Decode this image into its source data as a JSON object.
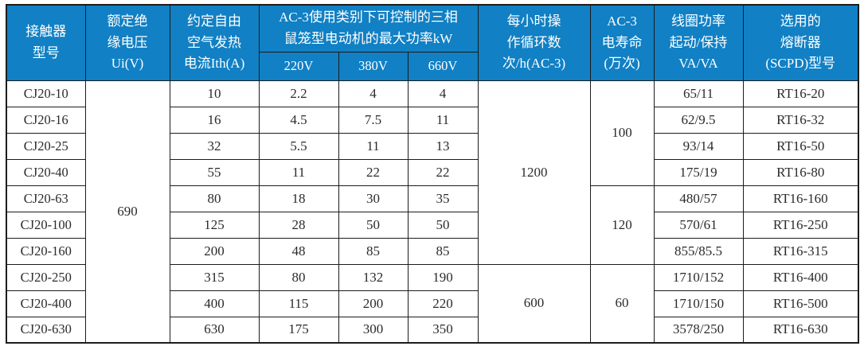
{
  "colors": {
    "header_bg": "#1180c4",
    "header_text": "#ffffff",
    "border_color": "#1c1c1c",
    "body_text": "#2b2b2b",
    "page_bg": "#ffffff"
  },
  "table": {
    "header": {
      "model": "接触器\n型号",
      "ui": "额定绝\n缘电压\nUi(V)",
      "ith": "约定自由\n空气发热\n电流Ith(A)",
      "power_group": "AC-3使用类别下可控制的三相\n鼠笼型电动机的最大功率kW",
      "v220": "220V",
      "v380": "380V",
      "v660": "660V",
      "cycles": "每小时操\n作循环数\n次/h(AC-3)",
      "life": "AC-3\n电寿命\n(万次)",
      "coil": "线圈功率\n起动/保持\nVA/VA",
      "fuse": "选用的\n熔断器\n(SCPD)型号"
    },
    "merged": {
      "ui": {
        "value": "690",
        "rowspan": 10
      },
      "cycles": [
        {
          "value": "1200",
          "rowspan": 7
        },
        {
          "value": "600",
          "rowspan": 3
        }
      ],
      "life": [
        {
          "value": "100",
          "rowspan": 4
        },
        {
          "value": "120",
          "rowspan": 3
        },
        {
          "value": "60",
          "rowspan": 3
        }
      ]
    },
    "rows": [
      {
        "model": "CJ20-10",
        "ith": "10",
        "p220": "2.2",
        "p380": "4",
        "p660": "4",
        "coil": "65/11",
        "fuse": "RT16-20"
      },
      {
        "model": "CJ20-16",
        "ith": "16",
        "p220": "4.5",
        "p380": "7.5",
        "p660": "11",
        "coil": "62/9.5",
        "fuse": "RT16-32"
      },
      {
        "model": "CJ20-25",
        "ith": "32",
        "p220": "5.5",
        "p380": "11",
        "p660": "13",
        "coil": "93/14",
        "fuse": "RT16-50"
      },
      {
        "model": "CJ20-40",
        "ith": "55",
        "p220": "11",
        "p380": "22",
        "p660": "22",
        "coil": "175/19",
        "fuse": "RT16-80"
      },
      {
        "model": "CJ20-63",
        "ith": "80",
        "p220": "18",
        "p380": "30",
        "p660": "35",
        "coil": "480/57",
        "fuse": "RT16-160"
      },
      {
        "model": "CJ20-100",
        "ith": "125",
        "p220": "28",
        "p380": "50",
        "p660": "50",
        "coil": "570/61",
        "fuse": "RT16-250"
      },
      {
        "model": "CJ20-160",
        "ith": "200",
        "p220": "48",
        "p380": "85",
        "p660": "85",
        "coil": "855/85.5",
        "fuse": "RT16-315"
      },
      {
        "model": "CJ20-250",
        "ith": "315",
        "p220": "80",
        "p380": "132",
        "p660": "190",
        "coil": "1710/152",
        "fuse": "RT16-400"
      },
      {
        "model": "CJ20-400",
        "ith": "400",
        "p220": "115",
        "p380": "200",
        "p660": "220",
        "coil": "1710/150",
        "fuse": "RT16-500"
      },
      {
        "model": "CJ20-630",
        "ith": "630",
        "p220": "175",
        "p380": "300",
        "p660": "350",
        "coil": "3578/250",
        "fuse": "RT16-630"
      }
    ]
  }
}
